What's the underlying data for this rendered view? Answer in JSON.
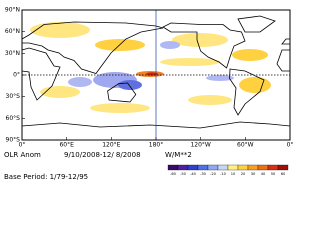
{
  "map": {
    "lat_labels": [
      "90°N",
      "60°N",
      "30°N",
      "0°",
      "30°S",
      "60°S",
      "90°S"
    ],
    "lon_labels": [
      "0°",
      "60°E",
      "120°E",
      "180°",
      "120°W",
      "60°W",
      "0°"
    ]
  },
  "footer": {
    "field": "OLR Anom",
    "dates": "9/10/2008-12/ 8/2008",
    "units": "W/M**2",
    "base_period": "Base Period: 1/79-12/95"
  },
  "legend": {
    "labels": [
      "-60",
      "-50",
      "-40",
      "-30",
      "-20",
      "-10",
      "10",
      "20",
      "30",
      "40",
      "50",
      "60"
    ]
  }
}
